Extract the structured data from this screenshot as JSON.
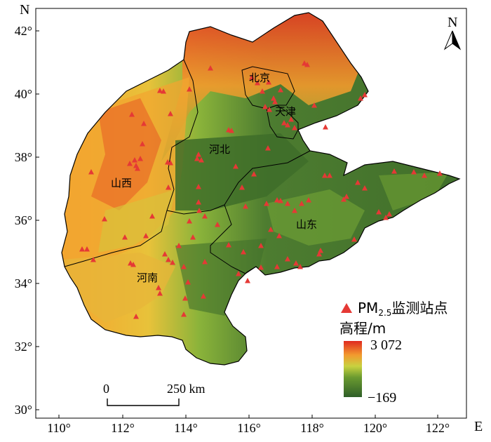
{
  "axes": {
    "x_ticks": [
      "110°",
      "112°",
      "114°",
      "116°",
      "118°",
      "120°",
      "122°"
    ],
    "y_ticks": [
      "42°",
      "40°",
      "38°",
      "36°",
      "34°",
      "32°",
      "30°"
    ],
    "x_letter": "E",
    "y_letter": "N"
  },
  "north_arrow": {
    "label": "N"
  },
  "regions": {
    "beijing": "北京",
    "tianjin": "天津",
    "hebei": "河北",
    "shanxi": "山西",
    "shandong": "山东",
    "henan": "河南"
  },
  "legend": {
    "station_prefix": "PM",
    "station_sub": "2.5",
    "station_suffix": "监测站点",
    "elevation_title": "高程/m",
    "elev_max": "3 072",
    "elev_min": "−169",
    "station_color": "#e53935"
  },
  "scale_bar": {
    "zero": "0",
    "distance": "250 km"
  }
}
